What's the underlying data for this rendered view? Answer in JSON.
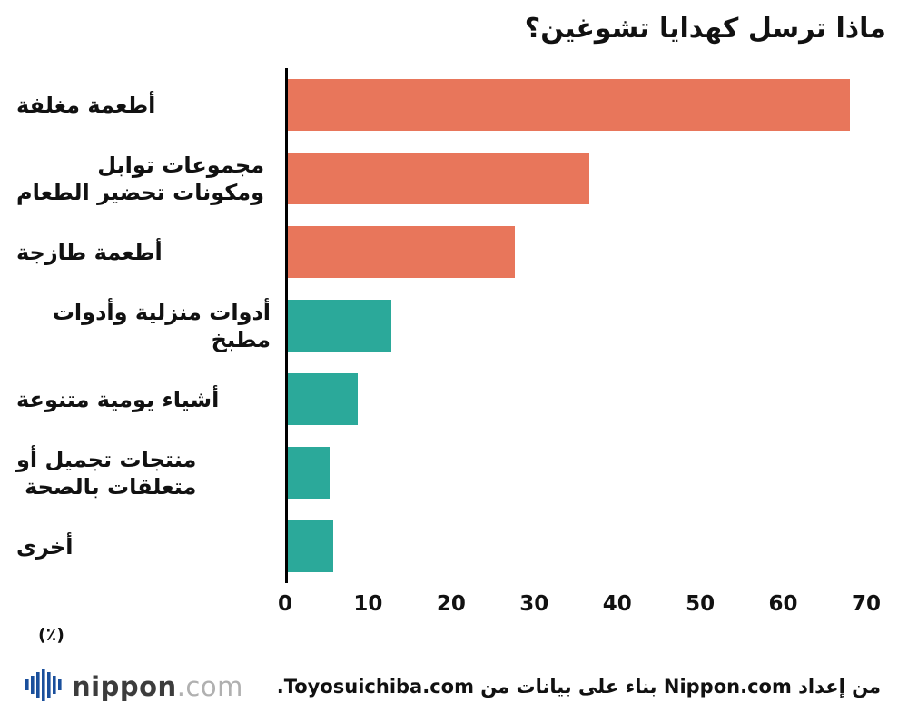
{
  "title": "ماذا ترسل كهدايا تشوغين؟",
  "chart_data": {
    "type": "bar",
    "orientation": "horizontal",
    "title": "ماذا ترسل كهدايا تشوغين؟",
    "categories": [
      "أطعمة مغلفة",
      "مجموعات توابل\nومكونات تحضير الطعام",
      "أطعمة طازجة",
      "أدوات منزلية وأدوات مطبخ",
      "أشياء يومية متنوعة",
      "منتجات تجميل أو\nمتعلقات بالصحة",
      "أخرى"
    ],
    "values": [
      68,
      36.5,
      27.5,
      12.5,
      8.5,
      5,
      5.5
    ],
    "bar_colors": [
      "#E8765B",
      "#E8765B",
      "#E8765B",
      "#2BA99A",
      "#2BA99A",
      "#2BA99A",
      "#2BA99A"
    ],
    "xlim": [
      0,
      70
    ],
    "x_ticks": [
      "0",
      "10",
      "20",
      "30",
      "40",
      "50",
      "60",
      "70"
    ],
    "x_unit_label": "(٪)",
    "grid": false,
    "legend": "none"
  },
  "footer": {
    "logo_main": "nippon",
    "logo_suffix": ".com",
    "attribution": "من إعداد Nippon.com بناء على بيانات من Toyosuichiba.com."
  },
  "colors": {
    "bar_orange": "#E8765B",
    "bar_teal": "#2BA99A",
    "axis": "#000000",
    "logo_blue": "#1A4F9C",
    "text": "#111111"
  }
}
